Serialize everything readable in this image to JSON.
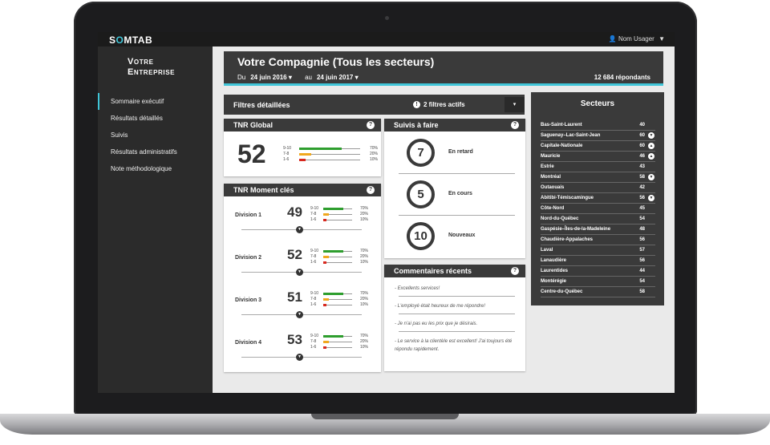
{
  "app": {
    "logo_prefix": "S",
    "logo_o": "O",
    "logo_suffix": "MTAB",
    "user_name": "Nom Usager",
    "user_icon": "user-icon",
    "chevron_icon": "chevron-down-icon"
  },
  "sidebar": {
    "brand_line1": "Votre",
    "brand_line2": "Entreprise",
    "items": [
      {
        "label": "Sommaire exécutif",
        "active": true,
        "has_arrow": false
      },
      {
        "label": "Résultats détaillés",
        "active": false,
        "has_arrow": true
      },
      {
        "label": "Suivis",
        "active": false,
        "has_arrow": true
      },
      {
        "label": "Résultats administratifs",
        "active": false,
        "has_arrow": true
      },
      {
        "label": "Note méthodologique",
        "active": false,
        "has_arrow": true
      }
    ],
    "arrow_glyph": "❯"
  },
  "header": {
    "title": "Votre Compagnie (Tous les secteurs)",
    "from_label": "Du",
    "from_date": "24 juin 2016 ▾",
    "to_label": "au",
    "to_date": "24 juin 2017 ▾",
    "respondents": "12 684 répondants",
    "accent_color": "#3fc5d8"
  },
  "filters": {
    "title": "Filtres détaillées",
    "active_count": "2 filtres actifs",
    "info_glyph": "!",
    "dropdown_glyph": "▾"
  },
  "tnr_global": {
    "title": "TNR Global",
    "score": "52",
    "distribution": [
      {
        "range": "9-10",
        "percent": "70%",
        "value": 70,
        "color": "#2e9e2e"
      },
      {
        "range": "7-8",
        "percent": "20%",
        "value": 20,
        "color": "#f0a81e"
      },
      {
        "range": "1-6",
        "percent": "10%",
        "value": 10,
        "color": "#d8281e"
      }
    ]
  },
  "tnr_moments": {
    "title": "TNR Moment clés",
    "divisions": [
      {
        "name": "Division 1",
        "score": "49"
      },
      {
        "name": "Division 2",
        "score": "52"
      },
      {
        "name": "Division 3",
        "score": "51"
      },
      {
        "name": "Division 4",
        "score": "53"
      }
    ],
    "distribution": [
      {
        "range": "9-10",
        "percent": "70%",
        "value": 70,
        "color": "#2e9e2e"
      },
      {
        "range": "7-8",
        "percent": "20%",
        "value": 20,
        "color": "#f0a81e"
      },
      {
        "range": "1-6",
        "percent": "10%",
        "value": 10,
        "color": "#d8281e"
      }
    ]
  },
  "suivis": {
    "title": "Suivis à faire",
    "items": [
      {
        "count": "7",
        "label": "En retard"
      },
      {
        "count": "5",
        "label": "En cours"
      },
      {
        "count": "10",
        "label": "Nouveaux"
      }
    ]
  },
  "comments": {
    "title": "Commentaires récents",
    "items": [
      "- Excellents services!",
      "- L'employé était heureux de me répondre!",
      "- Je n'ai pas eu les prix que je désirais.",
      "- Le service à la clientèle est excellent! J'ai toujours été répondu rapidement."
    ]
  },
  "sectors": {
    "title": "Secteurs",
    "rows": [
      {
        "name": "Bas-Saint-Laurent",
        "value": "40",
        "trend": ""
      },
      {
        "name": "Saguenay–Lac-Saint-Jean",
        "value": "60",
        "trend": "thumbs-down"
      },
      {
        "name": "Capitale-Nationale",
        "value": "60",
        "trend": "thumbs-up"
      },
      {
        "name": "Mauricie",
        "value": "46",
        "trend": "thumbs-up"
      },
      {
        "name": "Estrie",
        "value": "43",
        "trend": ""
      },
      {
        "name": "Montréal",
        "value": "58",
        "trend": "thumbs-down"
      },
      {
        "name": "Outaouais",
        "value": "42",
        "trend": ""
      },
      {
        "name": "Abitibi-Témiscamingue",
        "value": "56",
        "trend": "thumbs-down"
      },
      {
        "name": "Côte-Nord",
        "value": "45",
        "trend": ""
      },
      {
        "name": "Nord-du-Québec",
        "value": "54",
        "trend": ""
      },
      {
        "name": "Gaspésie–Îles-de-la-Madeleine",
        "value": "48",
        "trend": ""
      },
      {
        "name": "Chaudière-Appalaches",
        "value": "56",
        "trend": ""
      },
      {
        "name": "Laval",
        "value": "57",
        "trend": ""
      },
      {
        "name": "Lanaudière",
        "value": "56",
        "trend": ""
      },
      {
        "name": "Laurentides",
        "value": "44",
        "trend": ""
      },
      {
        "name": "Montérégie",
        "value": "54",
        "trend": ""
      },
      {
        "name": "Centre-du-Québec",
        "value": "58",
        "trend": ""
      }
    ]
  }
}
